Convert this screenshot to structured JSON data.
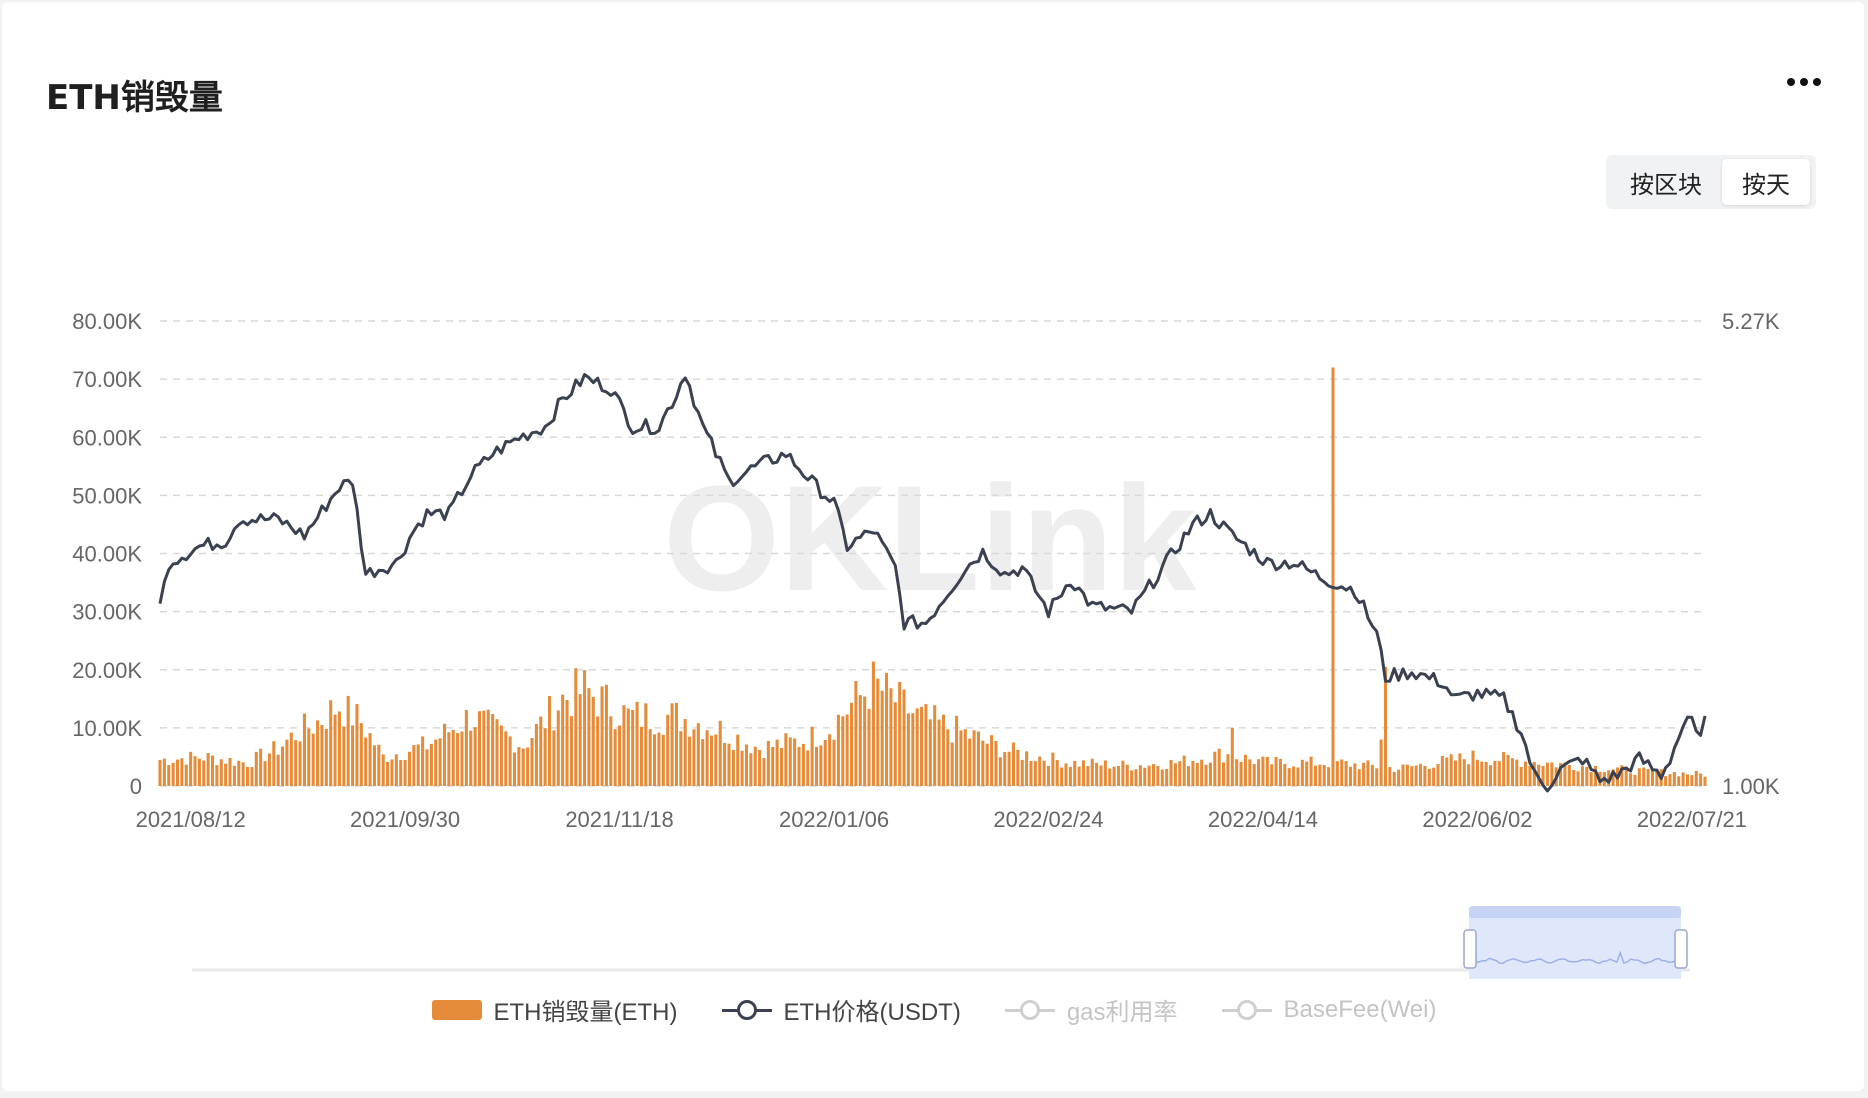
{
  "page": {
    "title": "ETH销毁量",
    "toggle": [
      "按区块",
      "按天"
    ],
    "active_toggle": 1
  },
  "legend": [
    {
      "label": "ETH销毁量(ETH)",
      "type": "bar",
      "active": true
    },
    {
      "label": "ETH价格(USDT)",
      "type": "line",
      "active": true
    },
    {
      "label": "gas利用率",
      "type": "line",
      "active": false
    },
    {
      "label": "BaseFee(Wei)",
      "type": "line",
      "active": false
    }
  ],
  "watermark": "OKLink",
  "chart_data": {
    "type": "bar+line",
    "x_start": "2021-08-05",
    "x_end": "2022-07-24",
    "x_ticks": [
      "2021/08/12",
      "2021/09/30",
      "2021/11/18",
      "2022/01/06",
      "2022/02/24",
      "2022/04/14",
      "2022/06/02",
      "2022/07/21"
    ],
    "y_left": {
      "ticks": [
        "0",
        "10.00K",
        "20.00K",
        "30.00K",
        "40.00K",
        "50.00K",
        "60.00K",
        "70.00K",
        "80.00K"
      ],
      "min": 0,
      "max": 80000
    },
    "y_right": {
      "ticks": [
        "1.00K",
        "5.27K"
      ],
      "min": 1000,
      "max": 5270
    },
    "grid": true,
    "colors": {
      "bar": "#e58c3b",
      "line": "#3a4150",
      "grid": "#d9d9d9",
      "axis_text": "#666666"
    },
    "burn_keyframes": [
      [
        "2021-08-05",
        4500
      ],
      [
        "2021-08-15",
        5000
      ],
      [
        "2021-08-25",
        4000
      ],
      [
        "2021-09-01",
        6500
      ],
      [
        "2021-09-05",
        9000
      ],
      [
        "2021-09-10",
        11000
      ],
      [
        "2021-09-15",
        14000
      ],
      [
        "2021-09-20",
        11000
      ],
      [
        "2021-09-25",
        5000
      ],
      [
        "2021-10-05",
        7000
      ],
      [
        "2021-10-15",
        12000
      ],
      [
        "2021-10-20",
        10000
      ],
      [
        "2021-10-27",
        7000
      ],
      [
        "2021-11-05",
        15000
      ],
      [
        "2021-11-10",
        16500
      ],
      [
        "2021-11-20",
        12000
      ],
      [
        "2021-12-01",
        12000
      ],
      [
        "2021-12-10",
        10000
      ],
      [
        "2021-12-20",
        6500
      ],
      [
        "2021-12-31",
        8000
      ],
      [
        "2022-01-05",
        10000
      ],
      [
        "2022-01-10",
        14000
      ],
      [
        "2022-01-15",
        17500
      ],
      [
        "2022-01-25",
        12000
      ],
      [
        "2022-02-05",
        9000
      ],
      [
        "2022-02-15",
        6000
      ],
      [
        "2022-03-01",
        4000
      ],
      [
        "2022-03-15",
        3500
      ],
      [
        "2022-03-25",
        4000
      ],
      [
        "2022-04-05",
        5500
      ],
      [
        "2022-04-15",
        4000
      ],
      [
        "2022-05-01",
        4000
      ],
      [
        "2022-05-15",
        3000
      ],
      [
        "2022-06-01",
        5000
      ],
      [
        "2022-06-10",
        4500
      ],
      [
        "2022-06-25",
        3500
      ],
      [
        "2022-07-10",
        2500
      ],
      [
        "2022-07-24",
        2000
      ]
    ],
    "burn_spikes": [
      [
        "2021-09-17",
        15500
      ],
      [
        "2022-04-07",
        10000
      ],
      [
        "2022-04-30",
        72000
      ],
      [
        "2022-05-12",
        20500
      ],
      [
        "2022-05-11",
        8000
      ]
    ],
    "price_keyframes": [
      [
        "2021-08-05",
        2650
      ],
      [
        "2021-08-07",
        3050
      ],
      [
        "2021-08-14",
        3200
      ],
      [
        "2021-08-20",
        3250
      ],
      [
        "2021-08-23",
        3450
      ],
      [
        "2021-09-01",
        3450
      ],
      [
        "2021-09-07",
        3300
      ],
      [
        "2021-09-15",
        3750
      ],
      [
        "2021-09-18",
        3800
      ],
      [
        "2021-09-21",
        2950
      ],
      [
        "2021-09-28",
        3050
      ],
      [
        "2021-10-02",
        3350
      ],
      [
        "2021-10-05",
        3500
      ],
      [
        "2021-10-10",
        3500
      ],
      [
        "2021-10-15",
        3850
      ],
      [
        "2021-10-20",
        4050
      ],
      [
        "2021-10-26",
        4200
      ],
      [
        "2021-11-01",
        4300
      ],
      [
        "2021-11-05",
        4550
      ],
      [
        "2021-11-10",
        4750
      ],
      [
        "2021-11-16",
        4650
      ],
      [
        "2021-11-21",
        4300
      ],
      [
        "2021-11-27",
        4300
      ],
      [
        "2021-12-01",
        4600
      ],
      [
        "2021-12-03",
        4800
      ],
      [
        "2021-12-07",
        4300
      ],
      [
        "2021-12-13",
        3800
      ],
      [
        "2021-12-20",
        3950
      ],
      [
        "2021-12-26",
        4050
      ],
      [
        "2022-01-02",
        3750
      ],
      [
        "2022-01-06",
        3600
      ],
      [
        "2022-01-09",
        3200
      ],
      [
        "2022-01-15",
        3350
      ],
      [
        "2022-01-20",
        3000
      ],
      [
        "2022-01-22",
        2500
      ],
      [
        "2022-01-27",
        2500
      ],
      [
        "2022-02-05",
        3000
      ],
      [
        "2022-02-09",
        3150
      ],
      [
        "2022-02-14",
        2950
      ],
      [
        "2022-02-18",
        3000
      ],
      [
        "2022-02-24",
        2600
      ],
      [
        "2022-03-01",
        2900
      ],
      [
        "2022-03-06",
        2650
      ],
      [
        "2022-03-15",
        2600
      ],
      [
        "2022-03-22",
        3000
      ],
      [
        "2022-03-29",
        3400
      ],
      [
        "2022-04-02",
        3500
      ],
      [
        "2022-04-07",
        3300
      ],
      [
        "2022-04-15",
        3050
      ],
      [
        "2022-04-21",
        3050
      ],
      [
        "2022-04-28",
        2900
      ],
      [
        "2022-05-05",
        2800
      ],
      [
        "2022-05-10",
        2400
      ],
      [
        "2022-05-12",
        2000
      ],
      [
        "2022-05-18",
        2050
      ],
      [
        "2022-05-25",
        1950
      ],
      [
        "2022-05-28",
        1800
      ],
      [
        "2022-06-02",
        1850
      ],
      [
        "2022-06-08",
        1800
      ],
      [
        "2022-06-12",
        1500
      ],
      [
        "2022-06-15",
        1100
      ],
      [
        "2022-06-18",
        1000
      ],
      [
        "2022-06-21",
        1150
      ],
      [
        "2022-06-26",
        1250
      ],
      [
        "2022-06-30",
        1050
      ],
      [
        "2022-07-04",
        1100
      ],
      [
        "2022-07-09",
        1250
      ],
      [
        "2022-07-14",
        1100
      ],
      [
        "2022-07-16",
        1250
      ],
      [
        "2022-07-19",
        1550
      ],
      [
        "2022-07-21",
        1600
      ],
      [
        "2022-07-22",
        1450
      ],
      [
        "2022-07-24",
        1600
      ]
    ]
  }
}
